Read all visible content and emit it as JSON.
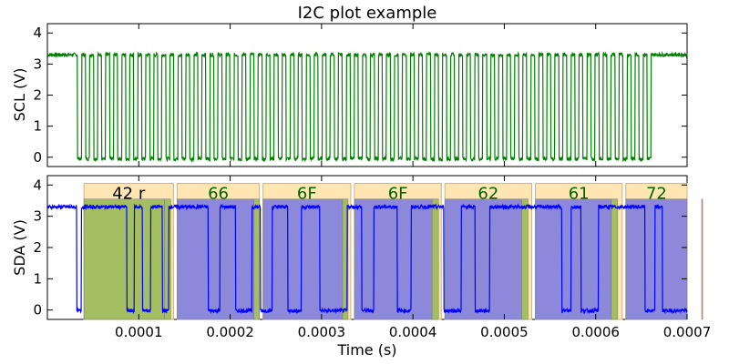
{
  "chart_data": {
    "type": "line",
    "title": "I2C plot example",
    "xlabel": "Time (s)",
    "xlim": [
      0,
      0.0007
    ],
    "x_ticks": [
      0.0001,
      0.0002,
      0.0003,
      0.0004,
      0.0005,
      0.0006,
      0.0007
    ],
    "x_tick_labels": [
      "0.0001",
      "0.0002",
      "0.0003",
      "0.0004",
      "0.0005",
      "0.0006",
      "0.0007"
    ],
    "panels": [
      {
        "ylabel": "SCL (V)",
        "ylim": [
          -0.3,
          4.3
        ],
        "y_ticks": [
          0,
          1,
          2,
          3,
          4
        ],
        "series": [
          {
            "color": "#008000",
            "signal": "scl",
            "high_v": 3.3,
            "low_v": -0.05,
            "idle_until_s": 3.2e-05,
            "clock_pulses": 72,
            "clock_start_s": 3.3e-05,
            "clock_end_s": 0.000665
          }
        ]
      },
      {
        "ylabel": "SDA (V)",
        "ylim": [
          -0.3,
          4.3
        ],
        "y_ticks": [
          0,
          1,
          2,
          3,
          4
        ],
        "series": [
          {
            "color": "#0000ff",
            "signal": "sda",
            "high_v": 3.3,
            "low_v": -0.02,
            "transitions_s": [
              3.2e-05,
              3.7e-05,
              8.7e-05,
              9.5e-05,
              0.000104,
              0.000113,
              0.000126,
              0.000133,
              0.000176,
              0.000189,
              0.000206,
              0.000224,
              0.000233,
              0.000246,
              0.000263,
              0.000278,
              0.000298,
              0.000328,
              0.000344,
              0.000357,
              0.000383,
              0.000398,
              0.000434,
              0.000453,
              0.000468,
              0.000484,
              0.000563,
              0.000573,
              0.000584,
              0.000603,
              0.000654,
              0.000665,
              0.000673
            ],
            "start_level": "high"
          }
        ],
        "annotations": {
          "bytes": [
            {
              "label": "42 r",
              "color": "#000000",
              "x0": 4e-05,
              "x1": 0.000138
            },
            {
              "label": "66",
              "color": "#006400",
              "x0": 0.000142,
              "x1": 0.000232
            },
            {
              "label": "6F",
              "color": "#006400",
              "x0": 0.000236,
              "x1": 0.000332
            },
            {
              "label": "6F",
              "color": "#006400",
              "x0": 0.000336,
              "x1": 0.000431
            },
            {
              "label": "62",
              "color": "#006400",
              "x0": 0.000435,
              "x1": 0.00053
            },
            {
              "label": "61",
              "color": "#006400",
              "x0": 0.000534,
              "x1": 0.000629
            },
            {
              "label": "72",
              "color": "#006400",
              "x0": 0.000633,
              "x1": 0.000729
            }
          ],
          "bit_spans": [
            {
              "kind": "address",
              "color": "#9bbb59",
              "x0": 4e-05,
              "x1": 0.000128
            },
            {
              "kind": "ack",
              "color": "#9bbb59",
              "x0": 0.000128,
              "x1": 0.000135
            },
            {
              "kind": "data",
              "color": "#8080e0",
              "x0": 0.000142,
              "x1": 0.000226
            },
            {
              "kind": "ack",
              "color": "#9bbb59",
              "x0": 0.000226,
              "x1": 0.000232
            },
            {
              "kind": "data",
              "color": "#8080e0",
              "x0": 0.000236,
              "x1": 0.000323
            },
            {
              "kind": "ack",
              "color": "#9bbb59",
              "x0": 0.000323,
              "x1": 0.000329
            },
            {
              "kind": "data",
              "color": "#8080e0",
              "x0": 0.000336,
              "x1": 0.000421
            },
            {
              "kind": "ack",
              "color": "#9bbb59",
              "x0": 0.000421,
              "x1": 0.000428
            },
            {
              "kind": "data",
              "color": "#8080e0",
              "x0": 0.000435,
              "x1": 0.000519
            },
            {
              "kind": "ack",
              "color": "#9bbb59",
              "x0": 0.000519,
              "x1": 0.000526
            },
            {
              "kind": "data",
              "color": "#8080e0",
              "x0": 0.000534,
              "x1": 0.000617
            },
            {
              "kind": "ack",
              "color": "#9bbb59",
              "x0": 0.000617,
              "x1": 0.000624
            },
            {
              "kind": "data",
              "color": "#8080e0",
              "x0": 0.000633,
              "x1": 0.000716
            },
            {
              "kind": "nack",
              "color": "#e87878",
              "x0": 0.000716,
              "x1": 0.000724
            }
          ],
          "byte_box_color": "#ffe6b3",
          "byte_box_top_v": 4.05,
          "bit_span_top_v": 3.55,
          "span_bottom_v": -0.3
        }
      }
    ]
  }
}
